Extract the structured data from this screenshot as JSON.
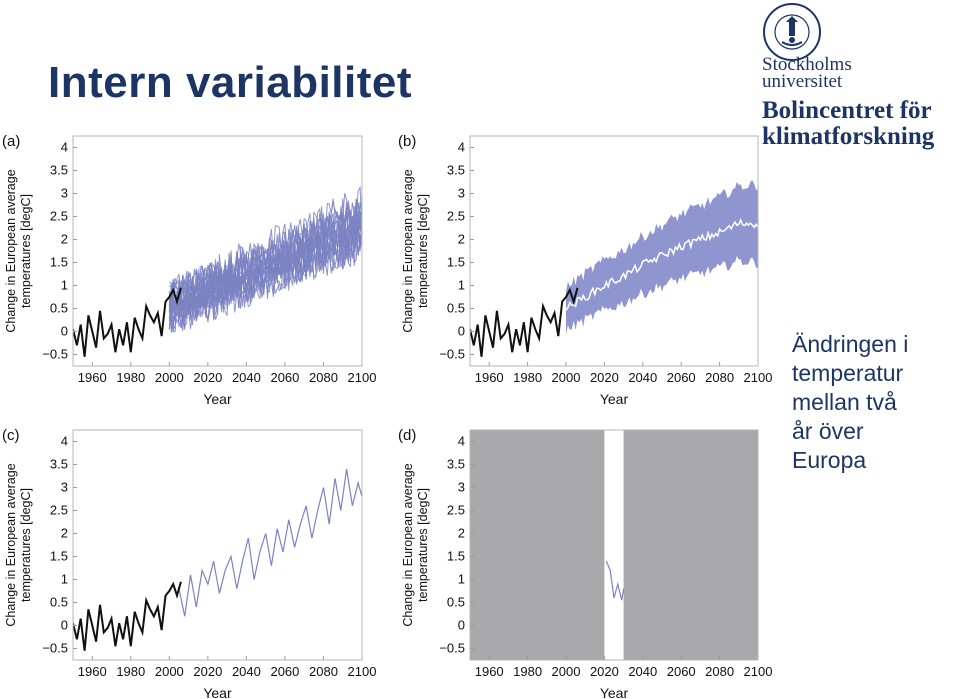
{
  "slide": {
    "title": "Intern variabilitet",
    "side_text": "Ändringen i\ntemperatur\nmellan två\når över\nEuropa"
  },
  "logo": {
    "university": [
      "Stockholms",
      "universitet"
    ],
    "department": [
      "Bolincentret för",
      "klimatforskning"
    ],
    "seal_text": "UNIVERSITET · STOCKHOLMS ·"
  },
  "colors": {
    "title": "#1c3565",
    "observed": "#111111",
    "ensemble": "#7b83c2",
    "envelope": "#8e95cf",
    "mean": "#ffffff",
    "grey_mask": "#a9a9ab"
  },
  "chart_data": [
    {
      "panel": "(a)",
      "type": "line",
      "xlabel": "Year",
      "ylabel": [
        "Change in European average",
        "temperatures [degC]"
      ],
      "xlim": [
        1950,
        2100
      ],
      "ylim": [
        -0.75,
        4.25
      ],
      "xticks": [
        1960,
        1980,
        2000,
        2020,
        2040,
        2060,
        2080,
        2100
      ],
      "yticks": [
        -0.5,
        0,
        0.5,
        1,
        1.5,
        2,
        2.5,
        3,
        3.5,
        4
      ],
      "ytick_labels": [
        "−0.5",
        "0",
        "0.5",
        "1",
        "1.5",
        "2",
        "2.5",
        "3",
        "3.5",
        "4"
      ],
      "observed": {
        "x": [
          1950,
          1952,
          1954,
          1956,
          1958,
          1960,
          1962,
          1964,
          1966,
          1968,
          1970,
          1972,
          1974,
          1976,
          1978,
          1980,
          1982,
          1984,
          1986,
          1988,
          1990,
          1992,
          1994,
          1996,
          1998,
          2000,
          2002,
          2004,
          2006
        ],
        "y": [
          0.05,
          -0.3,
          0.15,
          -0.55,
          0.35,
          0.0,
          -0.35,
          0.45,
          -0.15,
          -0.05,
          0.15,
          -0.45,
          0.05,
          -0.3,
          0.2,
          -0.45,
          0.3,
          0.05,
          -0.15,
          0.55,
          0.35,
          0.2,
          0.4,
          -0.1,
          0.65,
          0.75,
          0.9,
          0.65,
          0.95
        ]
      },
      "ensemble": {
        "members": 20,
        "x_start": 2000,
        "x_end": 2100,
        "mean_start": 0.55,
        "mean_end": 2.35,
        "spread": 0.55
      }
    },
    {
      "panel": "(b)",
      "type": "area",
      "xlabel": "Year",
      "ylabel": [
        "Change in European average",
        "temperatures [degC]"
      ],
      "xlim": [
        1950,
        2100
      ],
      "ylim": [
        -0.75,
        4.25
      ],
      "xticks": [
        1960,
        1980,
        2000,
        2020,
        2040,
        2060,
        2080,
        2100
      ],
      "yticks": [
        -0.5,
        0,
        0.5,
        1,
        1.5,
        2,
        2.5,
        3,
        3.5,
        4
      ],
      "ytick_labels": [
        "−0.5",
        "0",
        "0.5",
        "1",
        "1.5",
        "2",
        "2.5",
        "3",
        "3.5",
        "4"
      ],
      "observed": {
        "x": [
          1950,
          1952,
          1954,
          1956,
          1958,
          1960,
          1962,
          1964,
          1966,
          1968,
          1970,
          1972,
          1974,
          1976,
          1978,
          1980,
          1982,
          1984,
          1986,
          1988,
          1990,
          1992,
          1994,
          1996,
          1998,
          2000,
          2002,
          2004,
          2006
        ],
        "y": [
          0.05,
          -0.3,
          0.15,
          -0.55,
          0.35,
          0.0,
          -0.35,
          0.45,
          -0.15,
          -0.05,
          0.15,
          -0.45,
          0.05,
          -0.3,
          0.2,
          -0.45,
          0.3,
          0.05,
          -0.15,
          0.55,
          0.35,
          0.2,
          0.4,
          -0.1,
          0.65,
          0.75,
          0.9,
          0.65,
          0.95
        ]
      },
      "ensemble_mean": {
        "x": [
          2000,
          2010,
          2020,
          2030,
          2040,
          2050,
          2060,
          2070,
          2080,
          2090,
          2100
        ],
        "y": [
          0.5,
          0.75,
          1.0,
          1.2,
          1.45,
          1.65,
          1.85,
          2.0,
          2.15,
          2.35,
          2.35
        ]
      },
      "envelope_halfwidth": 0.85
    },
    {
      "panel": "(c)",
      "type": "line",
      "xlabel": "Year",
      "ylabel": [
        "Change in European average",
        "temperatures [degC]"
      ],
      "xlim": [
        1950,
        2100
      ],
      "ylim": [
        -0.75,
        4.25
      ],
      "xticks": [
        1960,
        1980,
        2000,
        2020,
        2040,
        2060,
        2080,
        2100
      ],
      "yticks": [
        -0.5,
        0,
        0.5,
        1,
        1.5,
        2,
        2.5,
        3,
        3.5,
        4
      ],
      "ytick_labels": [
        "−0.5",
        "0",
        "0.5",
        "1",
        "1.5",
        "2",
        "2.5",
        "3",
        "3.5",
        "4"
      ],
      "observed": {
        "x": [
          1950,
          1952,
          1954,
          1956,
          1958,
          1960,
          1962,
          1964,
          1966,
          1968,
          1970,
          1972,
          1974,
          1976,
          1978,
          1980,
          1982,
          1984,
          1986,
          1988,
          1990,
          1992,
          1994,
          1996,
          1998,
          2000,
          2002,
          2004,
          2006
        ],
        "y": [
          0.05,
          -0.3,
          0.15,
          -0.55,
          0.35,
          0.0,
          -0.35,
          0.45,
          -0.15,
          -0.05,
          0.15,
          -0.45,
          0.05,
          -0.3,
          0.2,
          -0.45,
          0.3,
          0.05,
          -0.15,
          0.55,
          0.35,
          0.2,
          0.4,
          -0.1,
          0.65,
          0.75,
          0.9,
          0.65,
          0.95
        ]
      },
      "projection": {
        "x": [
          2005,
          2008,
          2011,
          2014,
          2017,
          2020,
          2023,
          2026,
          2029,
          2032,
          2035,
          2038,
          2041,
          2044,
          2047,
          2050,
          2053,
          2056,
          2059,
          2062,
          2065,
          2068,
          2071,
          2074,
          2077,
          2080,
          2083,
          2086,
          2089,
          2092,
          2095,
          2098,
          2100
        ],
        "y": [
          0.8,
          0.2,
          1.1,
          0.4,
          1.2,
          0.9,
          1.4,
          0.7,
          1.2,
          1.5,
          0.8,
          1.4,
          1.9,
          1.0,
          1.6,
          2.0,
          1.3,
          2.1,
          1.6,
          2.3,
          1.7,
          2.2,
          2.6,
          1.9,
          2.5,
          3.0,
          2.2,
          3.2,
          2.5,
          3.4,
          2.6,
          3.1,
          2.8
        ]
      }
    },
    {
      "panel": "(d)",
      "type": "line",
      "xlabel": "Year",
      "ylabel": [
        "Change in European average",
        "temperatures [degC]"
      ],
      "xlim": [
        1950,
        2100
      ],
      "ylim": [
        -0.75,
        4.25
      ],
      "xticks": [
        1960,
        1980,
        2000,
        2020,
        2040,
        2060,
        2080,
        2100
      ],
      "yticks": [
        -0.5,
        0,
        0.5,
        1,
        1.5,
        2,
        2.5,
        3,
        3.5,
        4
      ],
      "ytick_labels": [
        "−0.5",
        "0",
        "0.5",
        "1",
        "1.5",
        "2",
        "2.5",
        "3",
        "3.5",
        "4"
      ],
      "visible_window": [
        2020,
        2030
      ],
      "projection": {
        "x": [
          2021,
          2023,
          2025,
          2027,
          2029,
          2030
        ],
        "y": [
          1.4,
          1.2,
          0.6,
          0.9,
          0.55,
          0.8
        ]
      }
    }
  ]
}
